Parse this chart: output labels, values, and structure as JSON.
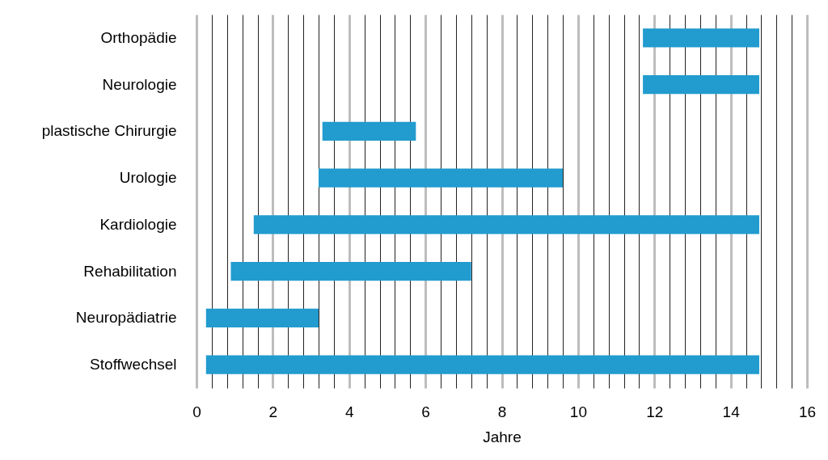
{
  "chart_data": {
    "type": "bar",
    "orientation": "horizontal",
    "xlabel": "Jahre",
    "categories": [
      "Orthopädie",
      "Neurologie",
      "plastische Chirurgie",
      "Urologie",
      "Kardiologie",
      "Rehabilitation",
      "Neuropädiatrie",
      "Stoffwechsel"
    ],
    "base": [
      11.7,
      11.7,
      3.3,
      3.2,
      1.5,
      0.9,
      0.25,
      0.25
    ],
    "values": [
      3.05,
      3.05,
      2.45,
      6.4,
      13.25,
      6.3,
      2.95,
      14.5
    ],
    "color": "#229bcf",
    "grid": true,
    "xlim": [
      0,
      16
    ],
    "xticks": [
      0,
      2,
      4,
      6,
      8,
      10,
      12,
      14,
      16,
      {
        "value": 0.4,
        "label": null
      },
      {
        "value": 0.8,
        "label": null
      },
      {
        "value": 1.2,
        "label": null
      },
      {
        "value": 1.6,
        "label": null
      },
      {
        "value": 2.4,
        "label": null
      },
      {
        "value": 2.8,
        "label": null
      },
      {
        "value": 3.2,
        "label": null
      },
      {
        "value": 3.6,
        "label": null
      },
      {
        "value": 4.4,
        "label": null
      },
      {
        "value": 4.8,
        "label": null
      },
      {
        "value": 5.2,
        "label": null
      },
      {
        "value": 5.6,
        "label": null
      },
      {
        "value": 6.4,
        "label": null
      },
      {
        "value": 6.8,
        "label": null
      },
      {
        "value": 7.2,
        "label": null
      },
      {
        "value": 7.6,
        "label": null
      },
      {
        "value": 8.4,
        "label": null
      },
      {
        "value": 8.8,
        "label": null
      },
      {
        "value": 9.2,
        "label": null
      },
      {
        "value": 9.6,
        "label": null
      },
      {
        "value": 10.4,
        "label": null
      },
      {
        "value": 10.8,
        "label": null
      },
      {
        "value": 11.2,
        "label": null
      },
      {
        "value": 11.6,
        "label": null
      },
      {
        "value": 12.4,
        "label": null
      },
      {
        "value": 12.8,
        "label": null
      },
      {
        "value": 13.2,
        "label": null
      },
      {
        "value": 13.6,
        "label": null
      },
      {
        "value": 14.4,
        "label": null
      },
      {
        "value": 14.8,
        "label": null
      },
      {
        "value": 15.2,
        "label": null
      },
      {
        "value": 15.6,
        "label": null
      }
    ]
  }
}
